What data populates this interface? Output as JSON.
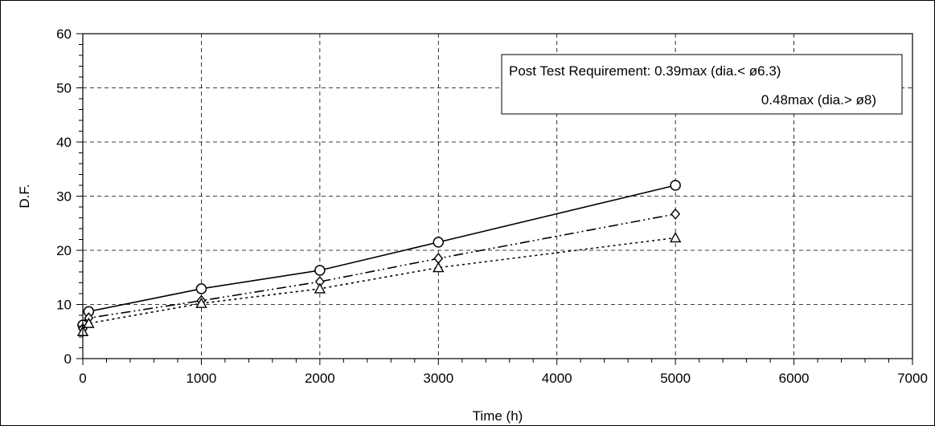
{
  "chart_data": {
    "type": "line",
    "xlabel": "Time (h)",
    "ylabel": "D.F.",
    "xlim": [
      0,
      7000
    ],
    "ylim": [
      0,
      60
    ],
    "x_ticks": [
      0,
      1000,
      2000,
      3000,
      4000,
      5000,
      6000,
      7000
    ],
    "y_ticks": [
      0,
      10,
      20,
      30,
      40,
      50,
      60
    ],
    "x_tick_labels": [
      "0",
      "1000",
      "2000",
      "3000",
      "4000",
      "5000",
      "6000",
      "7000"
    ],
    "y_tick_labels": [
      "0",
      "10",
      "20",
      "30",
      "40",
      "50",
      "60"
    ],
    "grid": true,
    "annotation": {
      "line1": "Post Test Requirement: 0.39max (dia.< ø6.3)",
      "line2": "0.48max (dia.> ø8)"
    },
    "series": [
      {
        "marker": "circle",
        "line_style": "solid",
        "x": [
          0,
          50,
          1000,
          2000,
          3000,
          5000
        ],
        "y": [
          6.2,
          8.7,
          12.9,
          16.3,
          21.5,
          32.0
        ]
      },
      {
        "marker": "diamond",
        "line_style": "dash-dot-dot",
        "x": [
          0,
          50,
          1000,
          2000,
          3000,
          5000
        ],
        "y": [
          5.5,
          7.5,
          10.7,
          14.2,
          18.5,
          26.7
        ]
      },
      {
        "marker": "triangle",
        "line_style": "dotted",
        "x": [
          0,
          50,
          1000,
          2000,
          3000,
          5000
        ],
        "y": [
          5.0,
          6.5,
          10.2,
          12.9,
          16.8,
          22.3
        ]
      }
    ]
  }
}
